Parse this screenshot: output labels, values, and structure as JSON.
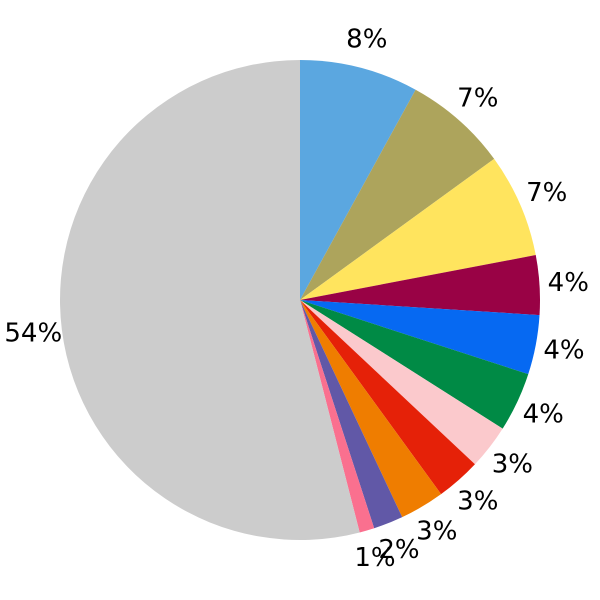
{
  "chart_data": {
    "type": "pie",
    "title": "",
    "legend_position": "none",
    "background_color": "#ffffff",
    "label_color": "#000000",
    "start_angle_deg": 90,
    "clockwise": true,
    "label_distance_ratio": 1.12,
    "values_are_percent": true,
    "slices": [
      {
        "name": "sky-blue",
        "label": "8%",
        "value": 8,
        "color": "#5BA7E0"
      },
      {
        "name": "khaki",
        "label": "7%",
        "value": 7,
        "color": "#ADA45C"
      },
      {
        "name": "yellow",
        "label": "7%",
        "value": 7,
        "color": "#FFE45E"
      },
      {
        "name": "maroon",
        "label": "4%",
        "value": 4,
        "color": "#990245"
      },
      {
        "name": "bright-blue",
        "label": "4%",
        "value": 4,
        "color": "#0669F2"
      },
      {
        "name": "green",
        "label": "4%",
        "value": 4,
        "color": "#008A45"
      },
      {
        "name": "light-pink",
        "label": "3%",
        "value": 3,
        "color": "#FBC9CC"
      },
      {
        "name": "red",
        "label": "3%",
        "value": 3,
        "color": "#E52108"
      },
      {
        "name": "orange",
        "label": "3%",
        "value": 3,
        "color": "#EF7D00"
      },
      {
        "name": "slate-purple",
        "label": "2%",
        "value": 2,
        "color": "#6158A7"
      },
      {
        "name": "hot-pink",
        "label": "1%",
        "value": 1,
        "color": "#FA708F"
      },
      {
        "name": "gray",
        "label": "54%",
        "value": 54,
        "color": "#CCCCCC"
      }
    ]
  }
}
